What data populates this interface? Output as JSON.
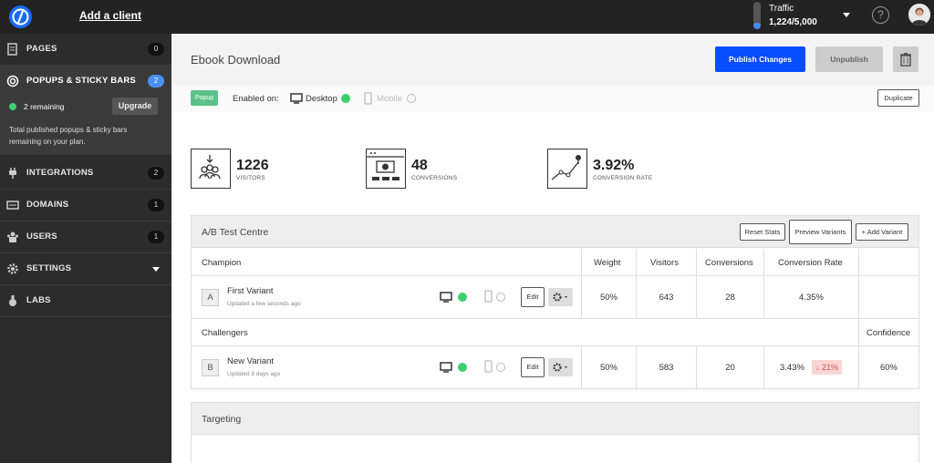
{
  "topbar": {
    "add_client": "Add a client",
    "traffic_label": "Traffic",
    "traffic_value": "1,224/5,000",
    "traffic_fraction": 0.245
  },
  "sidebar": {
    "items": [
      {
        "label": "PAGES",
        "count": "0"
      },
      {
        "label": "POPUPS & STICKY BARS",
        "count": "2"
      },
      {
        "label": "INTEGRATIONS",
        "count": "2"
      },
      {
        "label": "DOMAINS",
        "count": "1"
      },
      {
        "label": "USERS",
        "count": "1"
      },
      {
        "label": "SETTINGS"
      },
      {
        "label": "LABS"
      }
    ],
    "remaining": "2 remaining",
    "upgrade": "Upgrade",
    "plan_note": "Total published popups & sticky bars remaining on your plan."
  },
  "header": {
    "title": "Ebook Download",
    "publish": "Publish Changes",
    "unpublish": "Unpublish"
  },
  "subbar": {
    "badge": "Popup",
    "enabled_on": "Enabled on:",
    "desktop": "Desktop",
    "mobile": "Mobile",
    "duplicate": "Duplicate"
  },
  "stats": [
    {
      "value": "1226",
      "label": "VISITORS"
    },
    {
      "value": "48",
      "label": "CONVERSIONS"
    },
    {
      "value": "3.92%",
      "label": "CONVERSION RATE"
    }
  ],
  "ab": {
    "title": "A/B Test Centre",
    "reset": "Reset Stats",
    "preview": "Preview Variants",
    "add": "+ Add Variant",
    "champion_label": "Champion",
    "challengers_label": "Challengers",
    "columns": {
      "weight": "Weight",
      "visitors": "Visitors",
      "conversions": "Conversions",
      "rate": "Conversion Rate",
      "confidence": "Confidence"
    },
    "edit": "Edit",
    "champion": {
      "letter": "A",
      "name": "First Variant",
      "updated": "Updated a few seconds ago",
      "weight": "50%",
      "visitors": "643",
      "conversions": "28",
      "rate": "4.35%"
    },
    "challenger": {
      "letter": "B",
      "name": "New Variant",
      "updated": "Updated 9 days ago",
      "weight": "50%",
      "visitors": "583",
      "conversions": "20",
      "rate": "3.43%",
      "change": "↓ 21%",
      "confidence": "60%"
    }
  },
  "targeting": {
    "title": "Targeting"
  }
}
